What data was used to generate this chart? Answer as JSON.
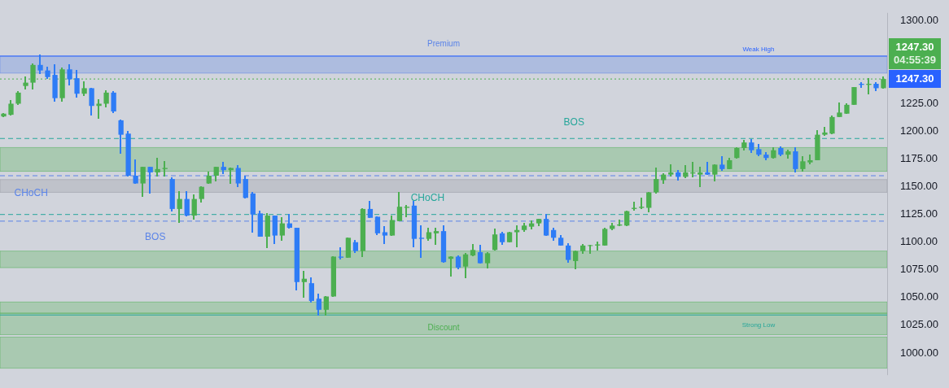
{
  "chart_data": {
    "type": "candlestick",
    "tick_labels": "y",
    "grid": false,
    "categories": [
      null,
      null,
      null,
      null,
      null,
      null,
      null,
      null,
      null,
      null,
      null,
      null,
      null,
      null,
      null,
      null,
      null,
      null,
      null,
      null,
      null,
      null,
      null,
      null,
      null,
      null,
      null,
      null,
      null,
      null,
      null,
      null,
      null,
      null,
      null,
      null,
      null,
      null,
      null,
      null,
      null,
      null,
      null,
      null,
      null,
      null,
      null,
      null,
      null,
      null,
      null,
      null,
      null,
      null,
      null,
      null,
      null,
      null,
      null,
      null,
      null,
      null,
      null,
      null,
      null,
      null,
      null,
      null,
      null,
      null,
      null,
      null,
      null,
      null,
      null,
      null,
      null,
      null,
      null,
      null,
      null,
      null,
      null,
      null,
      null,
      null,
      null,
      null,
      null,
      null,
      null,
      null,
      null,
      null,
      null,
      null,
      null,
      null,
      null,
      null,
      null,
      null,
      null,
      null,
      null,
      null,
      null,
      null,
      null,
      null,
      null,
      null,
      null,
      null,
      null,
      null,
      null,
      null,
      null,
      null,
      null
    ],
    "ohlc": [
      [
        1213.5,
        1216.5,
        1213,
        1216
      ],
      [
        1215,
        1228,
        1215,
        1225
      ],
      [
        1225,
        1236,
        1224,
        1235
      ],
      [
        1241,
        1249,
        1238,
        1244
      ],
      [
        1244,
        1261,
        1238,
        1260
      ],
      [
        1260,
        1269,
        1252,
        1255
      ],
      [
        1255,
        1258,
        1248,
        1249
      ],
      [
        1251,
        1260,
        1227,
        1230
      ],
      [
        1230,
        1257,
        1227,
        1256
      ],
      [
        1256,
        1260,
        1242,
        1247
      ],
      [
        1248,
        1255,
        1231,
        1234
      ],
      [
        1234,
        1245,
        1232,
        1239
      ],
      [
        1239,
        1239,
        1215,
        1223
      ],
      [
        1223,
        1229,
        1212,
        1225
      ],
      [
        1225,
        1237,
        1222,
        1235
      ],
      [
        1235,
        1236,
        1217,
        1218
      ],
      [
        1210,
        1210,
        1180,
        1197
      ],
      [
        1198,
        1200,
        1160,
        1160
      ],
      [
        1160,
        1174,
        1153,
        1153
      ],
      [
        1153,
        1168,
        1141,
        1168
      ],
      [
        1168,
        1168,
        1144,
        1163
      ],
      [
        1163,
        1176,
        1160,
        1166
      ],
      [
        1166,
        1173,
        1160,
        1167
      ],
      [
        1157,
        1158,
        1128,
        1130
      ],
      [
        1130,
        1146,
        1118,
        1139
      ],
      [
        1139,
        1146,
        1124,
        1124
      ],
      [
        1124,
        1143,
        1121,
        1139
      ],
      [
        1139,
        1150,
        1136,
        1150
      ],
      [
        1153,
        1163,
        1153,
        1160
      ],
      [
        1160,
        1168,
        1155,
        1168
      ],
      [
        1168,
        1172,
        1162,
        1165
      ],
      [
        1165,
        1167,
        1153,
        1167
      ],
      [
        1167,
        1169,
        1150,
        1153
      ],
      [
        1157,
        1160,
        1140,
        1140
      ],
      [
        1144,
        1145,
        1109,
        1125
      ],
      [
        1126,
        1128,
        1105,
        1105
      ],
      [
        1105,
        1126,
        1095,
        1124
      ],
      [
        1124,
        1124,
        1099,
        1106
      ],
      [
        1106,
        1122,
        1102,
        1117
      ],
      [
        1117,
        1125,
        1113,
        1113
      ],
      [
        1113,
        1113,
        1057,
        1064
      ],
      [
        1064,
        1074,
        1050,
        1067
      ],
      [
        1063,
        1068,
        1046,
        1047
      ],
      [
        1049,
        1053,
        1034,
        1039
      ],
      [
        1039,
        1051,
        1034,
        1051
      ],
      [
        1051,
        1087,
        1051,
        1087
      ],
      [
        1087,
        1095,
        1085,
        1086
      ],
      [
        1086,
        1104,
        1086,
        1104
      ],
      [
        1100,
        1102,
        1091,
        1092
      ],
      [
        1092,
        1130,
        1087,
        1130
      ],
      [
        1130,
        1137,
        1122,
        1122
      ],
      [
        1123,
        1123,
        1107,
        1108
      ],
      [
        1109,
        1114,
        1099,
        1106
      ],
      [
        1106,
        1124,
        1106,
        1120
      ],
      [
        1119,
        1145,
        1119,
        1132
      ],
      [
        1131,
        1133,
        1123,
        1132
      ],
      [
        1133,
        1137,
        1096,
        1103
      ],
      [
        1104,
        1115,
        1086,
        1103
      ],
      [
        1103,
        1113,
        1102,
        1109
      ],
      [
        1108,
        1113,
        1098,
        1110
      ],
      [
        1110,
        1115,
        1082,
        1082
      ],
      [
        1085,
        1087,
        1069,
        1087
      ],
      [
        1087,
        1088,
        1076,
        1077
      ],
      [
        1078,
        1090,
        1068,
        1089
      ],
      [
        1088,
        1098,
        1088,
        1093
      ],
      [
        1091,
        1097,
        1081,
        1081
      ],
      [
        1081,
        1091,
        1077,
        1090
      ],
      [
        1093,
        1112,
        1093,
        1107
      ],
      [
        1108,
        1109,
        1098,
        1100
      ],
      [
        1100,
        1109,
        1100,
        1109
      ],
      [
        1109,
        1115,
        1096,
        1111
      ],
      [
        1111,
        1117,
        1110,
        1115
      ],
      [
        1114,
        1119,
        1112,
        1117
      ],
      [
        1117,
        1121,
        1115,
        1121
      ],
      [
        1121,
        1125,
        1106,
        1106
      ],
      [
        1111,
        1113,
        1102,
        1104
      ],
      [
        1104,
        1106,
        1097,
        1097
      ],
      [
        1097,
        1099,
        1082,
        1084
      ],
      [
        1083,
        1092,
        1076,
        1092
      ],
      [
        1092,
        1098,
        1090,
        1097
      ],
      [
        1097,
        1097.3,
        1090,
        1097.3
      ],
      [
        1097,
        1100,
        1093,
        1098
      ],
      [
        1097,
        1113,
        1097,
        1112
      ],
      [
        1112,
        1117,
        1111,
        1115
      ],
      [
        1115,
        1120,
        1115,
        1116
      ],
      [
        1115,
        1128,
        1115,
        1128
      ],
      [
        1130,
        1136,
        1129,
        1131
      ],
      [
        1131,
        1140,
        1130,
        1132
      ],
      [
        1131,
        1145,
        1127,
        1145
      ],
      [
        1145,
        1167,
        1144,
        1157
      ],
      [
        1156,
        1162,
        1153,
        1161
      ],
      [
        1161,
        1170,
        1160,
        1163
      ],
      [
        1163,
        1165,
        1156,
        1159
      ],
      [
        1159,
        1169,
        1158,
        1163
      ],
      [
        1162,
        1172,
        1159,
        1163
      ],
      [
        1161,
        1168,
        1150,
        1163
      ],
      [
        1163,
        1172,
        1161,
        1161
      ],
      [
        1161,
        1170,
        1155,
        1170
      ],
      [
        1170,
        1177,
        1165,
        1166
      ],
      [
        1166,
        1176,
        1166,
        1174
      ],
      [
        1176,
        1185,
        1176,
        1185
      ],
      [
        1185,
        1192,
        1183,
        1190
      ],
      [
        1190,
        1193,
        1181,
        1183
      ],
      [
        1184,
        1188,
        1178,
        1179
      ],
      [
        1179,
        1181,
        1174,
        1176
      ],
      [
        1176,
        1185,
        1176,
        1183
      ],
      [
        1185,
        1186,
        1178,
        1179
      ],
      [
        1179,
        1183,
        1176,
        1182
      ],
      [
        1182,
        1185,
        1163,
        1166
      ],
      [
        1166,
        1177,
        1164,
        1173
      ],
      [
        1172,
        1179,
        1171,
        1174
      ],
      [
        1174,
        1201,
        1174,
        1197
      ],
      [
        1197,
        1204,
        1196,
        1199
      ],
      [
        1198,
        1214,
        1198,
        1213
      ],
      [
        1213,
        1226,
        1213,
        1217
      ],
      [
        1216,
        1225,
        1216,
        1224
      ],
      [
        1224,
        1240,
        1224,
        1240
      ],
      [
        1243,
        1244,
        1240,
        1242
      ],
      [
        1242,
        1248,
        1234,
        1243
      ],
      [
        1243,
        1244,
        1237,
        1239
      ],
      [
        1239,
        1249,
        1239,
        1247.3
      ]
    ],
    "ylim": [
      980,
      1307
    ],
    "yticks": [
      {
        "value": 1000,
        "label": "1000.00"
      },
      {
        "value": 1025,
        "label": "1025.00"
      },
      {
        "value": 1050,
        "label": "1050.00"
      },
      {
        "value": 1075,
        "label": "1075.00"
      },
      {
        "value": 1100,
        "label": "1100.00"
      },
      {
        "value": 1125,
        "label": "1125.00"
      },
      {
        "value": 1150,
        "label": "1150.00"
      },
      {
        "value": 1175,
        "label": "1175.00"
      },
      {
        "value": 1200,
        "label": "1200.00"
      },
      {
        "value": 1225,
        "label": "1225.00"
      },
      {
        "value": 1300,
        "label": "1300.00"
      }
    ],
    "bands": [
      {
        "axis": "y",
        "from": 1252.6,
        "to": 1267.7,
        "label": "Premium",
        "color": "#5b84e8"
      },
      {
        "axis": "y",
        "from": 1145,
        "to": 1156.5,
        "color": "#9598a1"
      },
      {
        "axis": "y",
        "from": 1164,
        "to": 1185.4,
        "color": "#4caf50"
      },
      {
        "axis": "y",
        "from": 1077,
        "to": 1092,
        "color": "#4caf50"
      },
      {
        "axis": "y",
        "from": 1036,
        "to": 1046,
        "color": "#4caf50"
      },
      {
        "axis": "y",
        "from": 1016.5,
        "to": 1035.7,
        "label": "Discount",
        "color": "#4caf50"
      },
      {
        "axis": "y",
        "from": 986.3,
        "to": 1014.4,
        "color": "#4caf50"
      }
    ],
    "ref_lines": [
      {
        "axis": "y",
        "value": 1268,
        "label": "Weak High",
        "color": "#2962ff",
        "line_style": "solid"
      },
      {
        "axis": "y",
        "value": 1247.3,
        "color": "#4caf50",
        "line_style": "dotted"
      },
      {
        "axis": "y",
        "value": 1160,
        "label": "CHoCH",
        "color": "#5b84e8",
        "line_style": "dashed"
      },
      {
        "axis": "y",
        "value": 1119,
        "label": "BOS",
        "color": "#5b84e8",
        "line_style": "dashed"
      },
      {
        "axis": "y",
        "value": 1125,
        "label": "CHoCH",
        "color": "#26a69a",
        "line_style": "dashed"
      },
      {
        "axis": "y",
        "value": 1193.6,
        "label": "BOS",
        "color": "#26a69a",
        "line_style": "dashed"
      },
      {
        "axis": "y",
        "value": 1034.3,
        "label": "Strong Low",
        "color": "#26a69a",
        "line_style": "solid"
      }
    ],
    "annotations": [
      "1247.30",
      "04:55:39",
      "1247.30"
    ]
  }
}
